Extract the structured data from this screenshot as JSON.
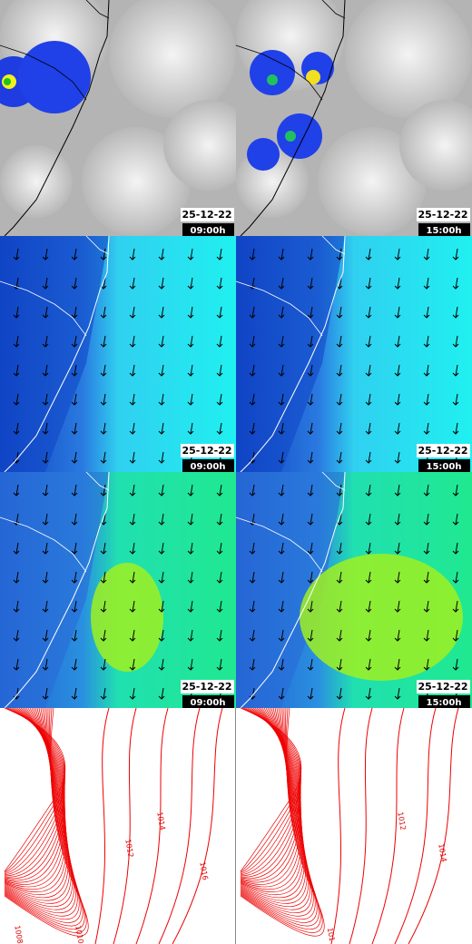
{
  "map_rows": [
    {
      "panels": [
        {
          "date": "25-12-22",
          "time": "09:00h"
        },
        {
          "date": "25-12-22",
          "time": "15:00h"
        }
      ]
    },
    {
      "panels": [
        {
          "date": "25-12-22",
          "time": "09:00h"
        },
        {
          "date": "25-12-22",
          "time": "15:00h"
        }
      ]
    },
    {
      "panels": [
        {
          "date": "25-12-22",
          "time": "09:00h"
        },
        {
          "date": "25-12-22",
          "time": "15:00h"
        }
      ]
    }
  ],
  "pressure_panels": [
    {
      "contour_labels": [
        "1014",
        "1012",
        "1016",
        "1010",
        "1008"
      ]
    },
    {
      "contour_labels": [
        "1012",
        "1014",
        "101"
      ]
    }
  ]
}
